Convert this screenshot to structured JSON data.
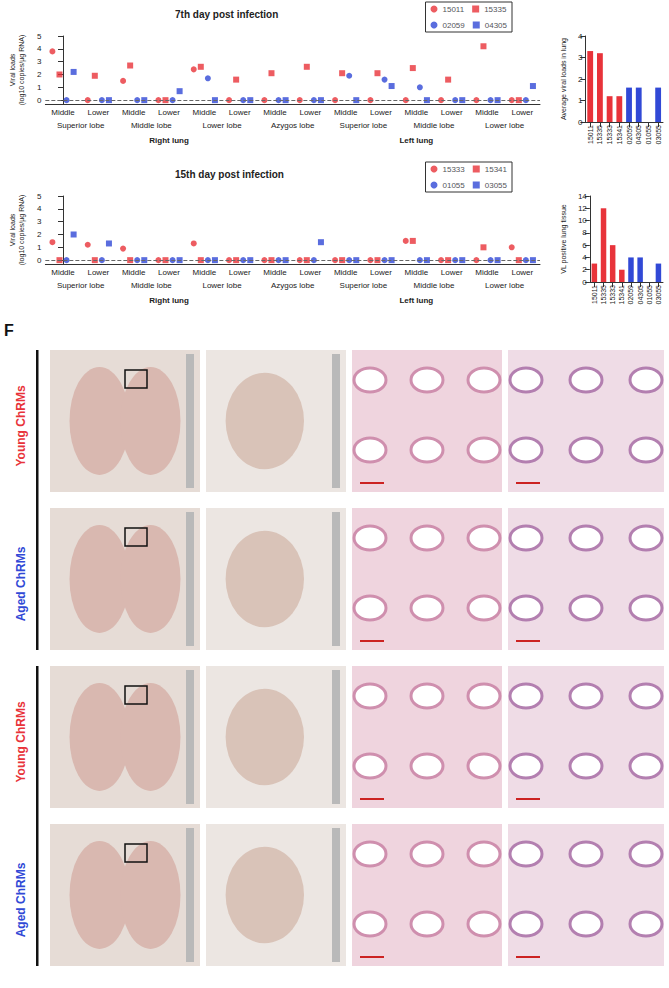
{
  "chart_data": [
    {
      "type": "scatter",
      "title": "7th day post infection",
      "categories": [
        "Middle",
        "Lower",
        "Middle",
        "Lower",
        "Middle",
        "Lower",
        "Middle",
        "Lower",
        "Middle",
        "Lower",
        "Middle",
        "Lower",
        "Middle",
        "Lower"
      ],
      "groups": [
        "Superior lobe",
        "Middle lobe",
        "Lower lobe",
        "Azygos lobe",
        "Superior lobe",
        "Middle lobe",
        "Lower lobe"
      ],
      "sections": [
        "Right lung",
        "Left lung"
      ],
      "y_label": "Viral loads\n(log10 copies/µg RNA)",
      "ylim": [
        -0.3,
        5
      ],
      "yticks": [
        0,
        1,
        2,
        3,
        4,
        5
      ],
      "hline": 0,
      "legend": "upper right",
      "series": [
        {
          "name": "15011",
          "color": "#e8333a",
          "marker": "circle",
          "values": [
            3.8,
            0,
            1.5,
            0,
            2.4,
            0,
            0,
            0,
            0,
            0,
            0,
            0,
            0,
            0
          ]
        },
        {
          "name": "15335",
          "color": "#e8333a",
          "marker": "square",
          "values": [
            2.0,
            1.9,
            2.7,
            0,
            2.6,
            1.6,
            2.1,
            2.6,
            2.1,
            2.1,
            2.5,
            1.6,
            4.2,
            0
          ]
        },
        {
          "name": "02059",
          "color": "#3149d6",
          "marker": "circle",
          "values": [
            0,
            0,
            0,
            0,
            1.7,
            0,
            0,
            0,
            1.9,
            1.6,
            1.0,
            0,
            0,
            0
          ]
        },
        {
          "name": "04305",
          "color": "#3149d6",
          "marker": "square",
          "values": [
            2.2,
            0,
            0,
            0.7,
            0,
            0,
            0,
            0,
            0,
            1.1,
            0,
            0,
            0,
            1.1
          ]
        }
      ]
    },
    {
      "type": "bar",
      "y_label": "Average viral loads in lung",
      "categories": [
        "15011",
        "15335",
        "15333",
        "15341",
        "02059",
        "04305",
        "01055",
        "03055"
      ],
      "values": [
        3.3,
        3.2,
        1.2,
        1.2,
        1.6,
        1.6,
        0,
        1.6
      ],
      "colors": [
        "#e8333a",
        "#e8333a",
        "#e8333a",
        "#e8333a",
        "#3149d6",
        "#3149d6",
        "#3149d6",
        "#3149d6"
      ],
      "ylim": [
        0,
        4
      ],
      "yticks": [
        0,
        1,
        2,
        3,
        4
      ]
    },
    {
      "type": "scatter",
      "title": "15th day post infection",
      "categories": [
        "Middle",
        "Lower",
        "Middle",
        "Lower",
        "Middle",
        "Lower",
        "Middle",
        "Lower",
        "Middle",
        "Lower",
        "Middle",
        "Lower",
        "Middle",
        "Lower"
      ],
      "groups": [
        "Superior lobe",
        "Middle lobe",
        "Lower lobe",
        "Azygos lobe",
        "Superior lobe",
        "Middle lobe",
        "Lower lobe"
      ],
      "sections": [
        "Right lung",
        "Left lung"
      ],
      "y_label": "Viral loads\n(log10 copies/µg RNA)",
      "ylim": [
        -0.3,
        5
      ],
      "yticks": [
        0,
        1,
        2,
        3,
        4,
        5
      ],
      "hline": 0,
      "legend": "upper right",
      "series": [
        {
          "name": "15333",
          "color": "#e8333a",
          "marker": "circle",
          "values": [
            1.4,
            1.2,
            0.9,
            0,
            1.3,
            0,
            0,
            0,
            0,
            0,
            1.5,
            0,
            0,
            1.0
          ]
        },
        {
          "name": "15341",
          "color": "#e8333a",
          "marker": "square",
          "values": [
            0,
            0,
            0,
            0,
            0,
            0,
            0,
            0,
            0,
            0,
            1.5,
            0,
            1.0,
            0
          ]
        },
        {
          "name": "01055",
          "color": "#3149d6",
          "marker": "circle",
          "values": [
            0,
            0,
            0,
            0,
            0,
            0,
            0,
            0,
            0,
            0,
            0,
            0,
            0,
            0
          ]
        },
        {
          "name": "03055",
          "color": "#3149d6",
          "marker": "square",
          "values": [
            2.0,
            1.3,
            0,
            0,
            0,
            0,
            0,
            1.4,
            0,
            0,
            0,
            0,
            0,
            0
          ]
        }
      ]
    },
    {
      "type": "bar",
      "y_label": "VL positive lung tissue",
      "categories": [
        "15011",
        "15335",
        "15333",
        "15341",
        "02059",
        "04305",
        "01055",
        "03055"
      ],
      "values": [
        3,
        12,
        6,
        2,
        4,
        4,
        0,
        3
      ],
      "colors": [
        "#e8333a",
        "#e8333a",
        "#e8333a",
        "#e8333a",
        "#3149d6",
        "#3149d6",
        "#3149d6",
        "#3149d6"
      ],
      "ylim": [
        0,
        14
      ],
      "yticks": [
        0,
        2,
        4,
        6,
        8,
        10,
        12,
        14
      ]
    }
  ],
  "panel_f": {
    "label": "F",
    "rows": [
      {
        "text": "Young ChRMs",
        "color": "#e8333a"
      },
      {
        "text": "Aged ChRMs",
        "color": "#3149d6"
      },
      {
        "text": "Young ChRMs",
        "color": "#e8333a"
      },
      {
        "text": "Aged ChRMs",
        "color": "#3149d6"
      }
    ]
  }
}
